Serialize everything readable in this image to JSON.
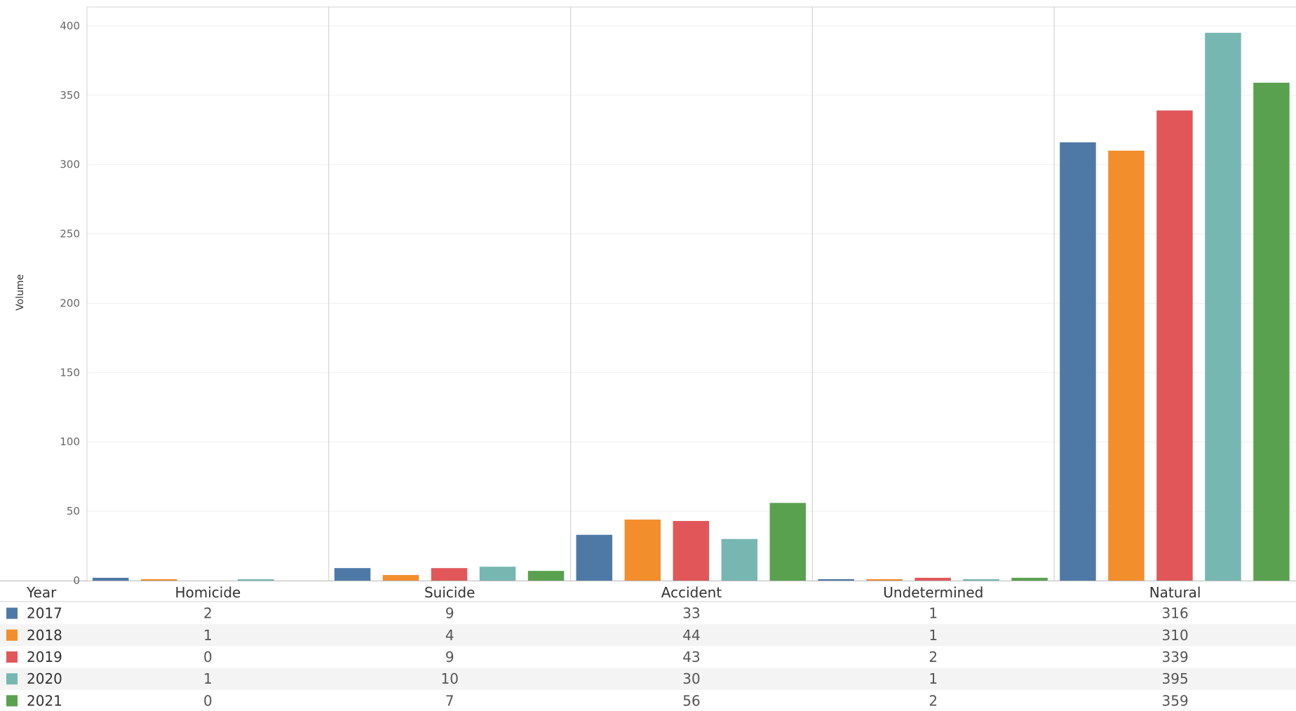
{
  "chart_data": {
    "type": "bar",
    "title": "",
    "xlabel": "",
    "ylabel": "Volume",
    "ylim": [
      0,
      400
    ],
    "yticks": [
      0,
      50,
      100,
      150,
      200,
      250,
      300,
      350,
      400
    ],
    "grid": true,
    "legend_header": "Year",
    "categories": [
      "Homicide",
      "Suicide",
      "Accident",
      "Undetermined",
      "Natural"
    ],
    "series": [
      {
        "name": "2017",
        "color": "#4e79a7",
        "values": [
          2,
          9,
          33,
          1,
          316
        ]
      },
      {
        "name": "2018",
        "color": "#f28e2b",
        "values": [
          1,
          4,
          44,
          1,
          310
        ]
      },
      {
        "name": "2019",
        "color": "#e15759",
        "values": [
          0,
          9,
          43,
          2,
          339
        ]
      },
      {
        "name": "2020",
        "color": "#76b7b2",
        "values": [
          1,
          10,
          30,
          1,
          395
        ]
      },
      {
        "name": "2021",
        "color": "#59a14f",
        "values": [
          0,
          7,
          56,
          2,
          359
        ]
      }
    ]
  }
}
